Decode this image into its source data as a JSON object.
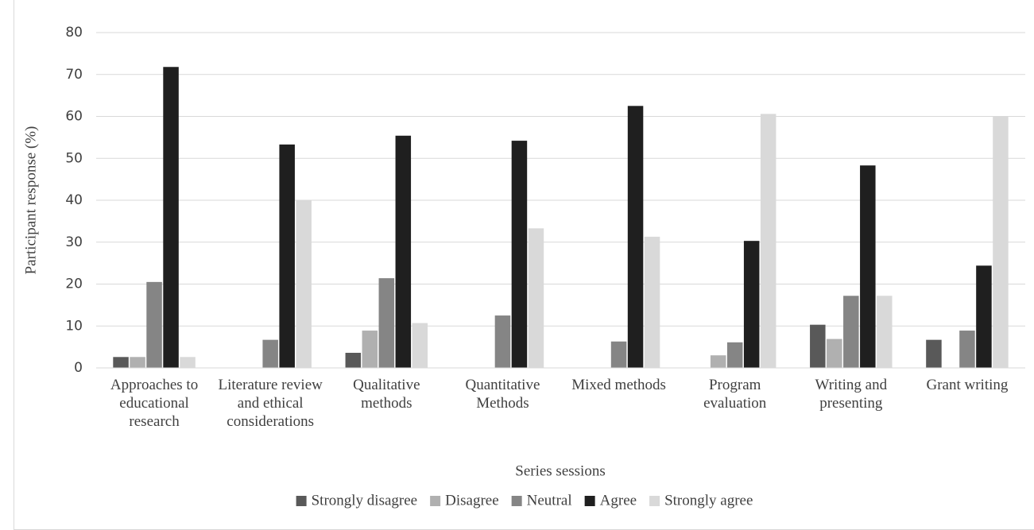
{
  "chart_data": {
    "type": "bar",
    "y_label": "Participant response (%)",
    "x_label": "Series sessions",
    "categories": [
      "Approaches to educational research",
      "Literature review and ethical considerations",
      "Qualitative methods",
      "Quantitative Methods",
      "Mixed methods",
      "Program evaluation",
      "Writing and presenting",
      "Grant writing"
    ],
    "series": [
      {
        "name": "Strongly disagree",
        "color": "#595959",
        "values": [
          2.6,
          0,
          3.6,
          0,
          0,
          0,
          10.3,
          6.7
        ]
      },
      {
        "name": "Disagree",
        "color": "#b0b0b0",
        "values": [
          2.6,
          0,
          8.9,
          0,
          0,
          3.0,
          6.9,
          0
        ]
      },
      {
        "name": "Neutral",
        "color": "#858585",
        "values": [
          20.5,
          6.7,
          21.4,
          12.5,
          6.3,
          6.1,
          17.2,
          8.9
        ]
      },
      {
        "name": "Agree",
        "color": "#1f1f1f",
        "values": [
          71.8,
          53.3,
          55.4,
          54.2,
          62.5,
          30.3,
          48.3,
          24.4
        ]
      },
      {
        "name": "Strongly agree",
        "color": "#d9d9d9",
        "values": [
          2.6,
          40.0,
          10.7,
          33.3,
          31.3,
          60.6,
          17.2,
          60.0
        ]
      }
    ],
    "ylim": [
      0,
      80
    ],
    "yticks": [
      0,
      10,
      20,
      30,
      40,
      50,
      60,
      70,
      80
    ],
    "grid": true,
    "legend": "bottom"
  }
}
